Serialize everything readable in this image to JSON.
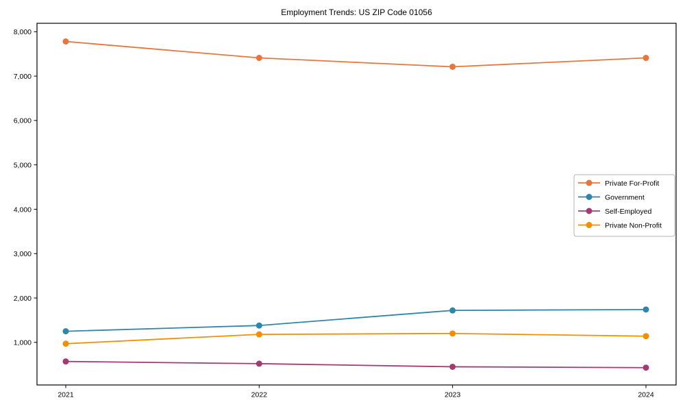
{
  "title": "Employment Trends: US ZIP Code 01056",
  "chart_data": {
    "type": "line",
    "title": "Employment Trends: US ZIP Code 01056",
    "xlabel": "",
    "ylabel": "",
    "categories": [
      "2021",
      "2022",
      "2023",
      "2024"
    ],
    "series": [
      {
        "name": "Private For-Profit",
        "color": "#E8763C",
        "values": [
          7780,
          7410,
          7210,
          7410
        ]
      },
      {
        "name": "Government",
        "color": "#2E86AB",
        "values": [
          1250,
          1380,
          1720,
          1740
        ]
      },
      {
        "name": "Self-Employed",
        "color": "#A23B72",
        "values": [
          570,
          520,
          450,
          430
        ]
      },
      {
        "name": "Private Non-Profit",
        "color": "#F18F01",
        "values": [
          970,
          1180,
          1200,
          1140
        ]
      }
    ],
    "yticks": [
      1000,
      2000,
      3000,
      4000,
      5000,
      6000,
      7000,
      8000
    ],
    "ylim": [
      40,
      8190
    ],
    "ytick_format": "comma",
    "grid": false,
    "legend_position": "center-right",
    "frame": "full-box",
    "colors": {
      "axis": "#000000",
      "legend_border": "#b3b3b3",
      "background": "#ffffff"
    }
  }
}
